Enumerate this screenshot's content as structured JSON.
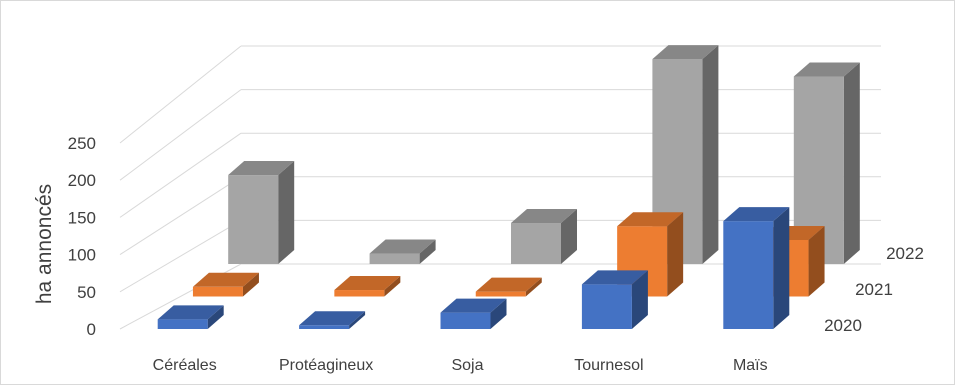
{
  "chart_data": {
    "type": "bar",
    "subtype": "3d-column",
    "title": "",
    "xlabel": "",
    "ylabel": "ha annoncés",
    "ylim": [
      0,
      250
    ],
    "yticks": [
      0,
      50,
      100,
      150,
      200,
      250
    ],
    "grid": true,
    "categories": [
      "Céréales",
      "Protéagineux",
      "Soja",
      "Tournesol",
      "Maïs"
    ],
    "series": [
      {
        "name": "2020",
        "values": [
          13,
          5,
          22,
          60,
          145
        ],
        "color": "#4472c4"
      },
      {
        "name": "2021",
        "values": [
          12,
          8,
          6,
          87,
          70
        ],
        "color": "#ed7d31"
      },
      {
        "name": "2022",
        "values": [
          102,
          12,
          47,
          235,
          215
        ],
        "color": "#a5a5a5"
      }
    ]
  }
}
